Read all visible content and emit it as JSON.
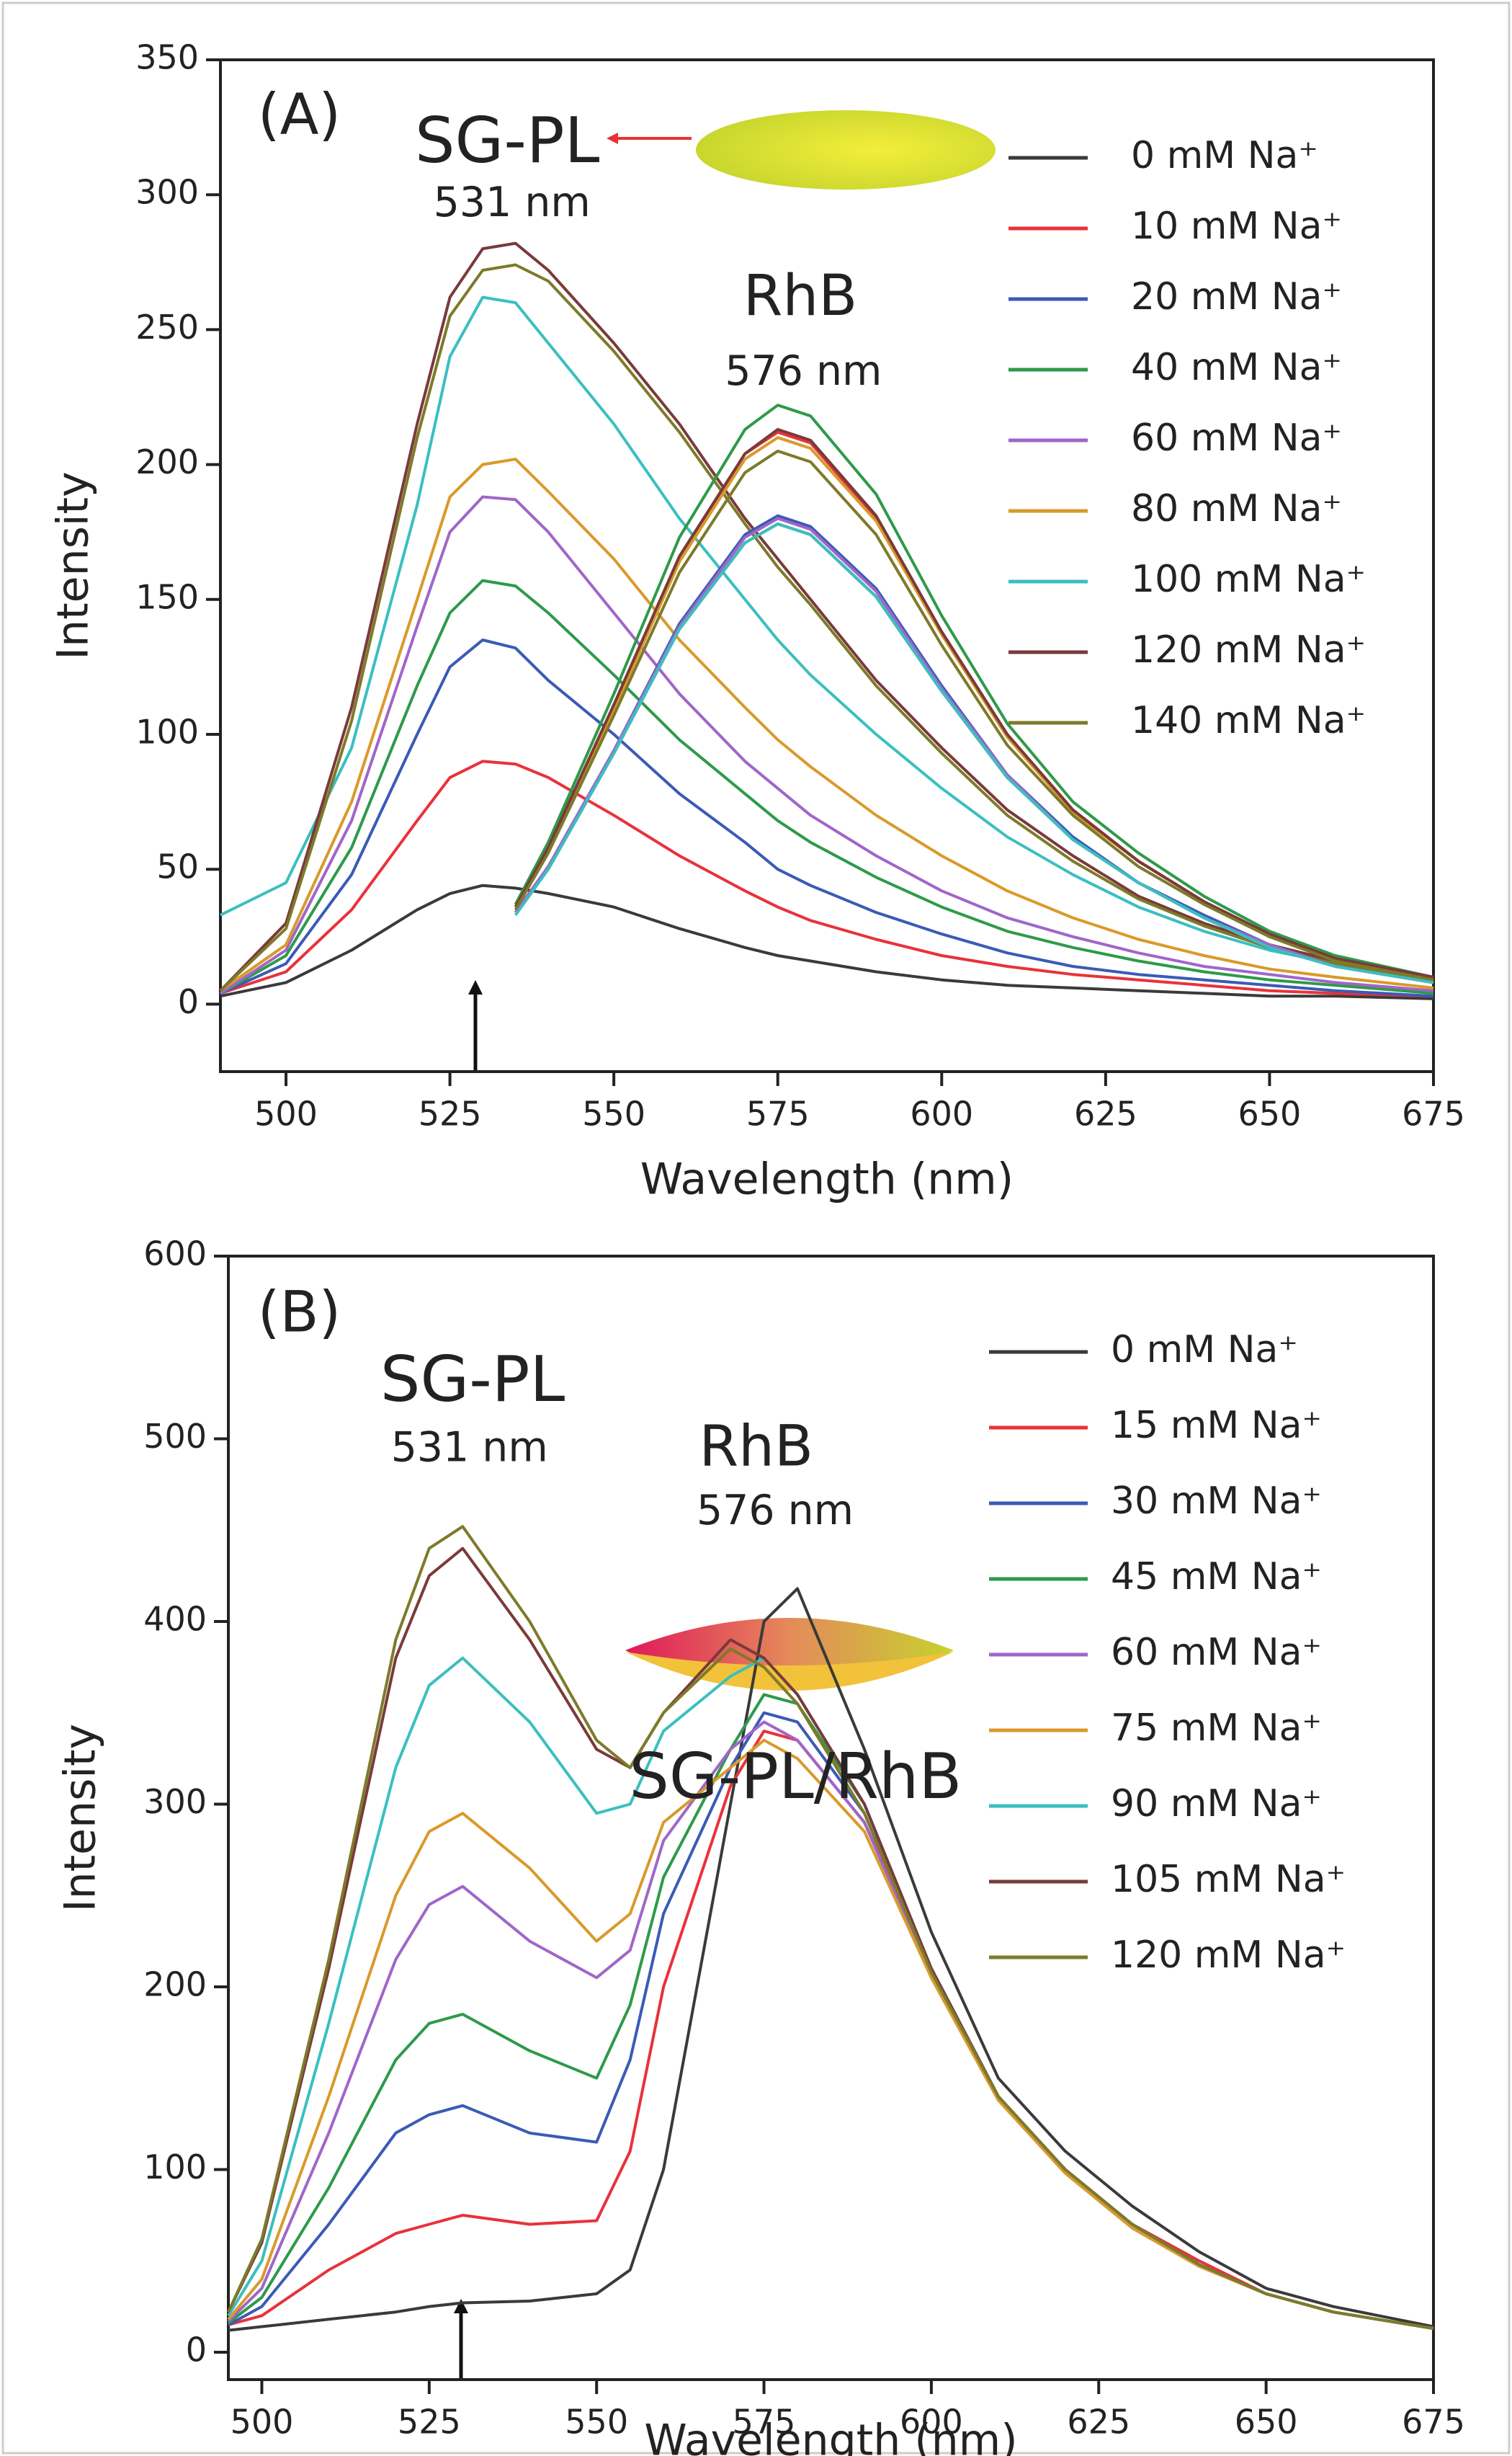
{
  "chart_data": [
    {
      "type": "line",
      "xlabel": "Wavelength (nm)",
      "ylabel": "Intensity",
      "xlim": [
        490,
        675
      ],
      "ylim": [
        -25,
        350
      ],
      "xticks": [
        500,
        525,
        550,
        575,
        600,
        625,
        650,
        675
      ],
      "yticks": [
        0,
        50,
        100,
        150,
        200,
        250,
        300,
        350
      ],
      "annotations": [
        "(A)",
        "SG-PL",
        "531 nm",
        "RhB",
        "576 nm"
      ],
      "x": [
        490,
        500,
        510,
        520,
        525,
        530,
        535,
        540,
        550,
        560,
        570,
        575,
        580,
        590,
        600,
        610,
        620,
        630,
        640,
        650,
        660,
        675
      ],
      "series": [
        {
          "name": "0 mM Na⁺",
          "color": "#3a3a3a",
          "values": [
            3,
            8,
            20,
            35,
            41,
            44,
            43,
            41,
            36,
            28,
            21,
            18,
            16,
            12,
            9,
            7,
            6,
            5,
            4,
            3,
            3,
            2
          ],
          "rhb_values": [
            null,
            null,
            null,
            null,
            null,
            null,
            34,
            50,
            93,
            139,
            171,
            178,
            174,
            151,
            116,
            84,
            61,
            45,
            32,
            21,
            14,
            8
          ]
        },
        {
          "name": "10 mM Na⁺",
          "color": "#e8323a",
          "values": [
            4,
            12,
            35,
            68,
            84,
            90,
            89,
            84,
            70,
            55,
            42,
            36,
            31,
            24,
            18,
            14,
            11,
            9,
            7,
            5,
            4,
            3
          ],
          "rhb_values": [
            null,
            null,
            null,
            null,
            null,
            null,
            36,
            57,
            110,
            165,
            204,
            212,
            208,
            180,
            138,
            100,
            72,
            53,
            38,
            25,
            17,
            9
          ]
        },
        {
          "name": "20 mM Na⁺",
          "color": "#3a5bb5",
          "values": [
            4,
            15,
            48,
            100,
            125,
            135,
            132,
            120,
            100,
            78,
            60,
            50,
            44,
            34,
            26,
            19,
            14,
            11,
            9,
            7,
            5,
            3
          ],
          "rhb_values": [
            null,
            null,
            null,
            null,
            null,
            null,
            34,
            51,
            94,
            141,
            174,
            181,
            177,
            154,
            118,
            85,
            62,
            45,
            33,
            22,
            14,
            8
          ]
        },
        {
          "name": "40 mM Na⁺",
          "color": "#2e9a4a",
          "values": [
            4,
            18,
            58,
            118,
            145,
            157,
            155,
            145,
            122,
            98,
            78,
            68,
            60,
            47,
            36,
            27,
            21,
            16,
            12,
            9,
            7,
            4
          ],
          "rhb_values": [
            null,
            null,
            null,
            null,
            null,
            null,
            37,
            60,
            115,
            173,
            213,
            222,
            218,
            189,
            144,
            104,
            75,
            56,
            40,
            27,
            18,
            10
          ]
        },
        {
          "name": "60 mM Na⁺",
          "color": "#a066c8",
          "values": [
            4,
            20,
            68,
            140,
            175,
            188,
            187,
            175,
            145,
            115,
            90,
            80,
            70,
            55,
            42,
            32,
            25,
            19,
            14,
            11,
            8,
            5
          ],
          "rhb_values": [
            null,
            null,
            null,
            null,
            null,
            null,
            34,
            51,
            94,
            140,
            173,
            180,
            176,
            153,
            117,
            85,
            61,
            45,
            32,
            22,
            14,
            8
          ]
        },
        {
          "name": "80 mM Na⁺",
          "color": "#d99a2a",
          "values": [
            5,
            22,
            75,
            150,
            188,
            200,
            202,
            190,
            165,
            135,
            110,
            98,
            88,
            70,
            55,
            42,
            32,
            24,
            18,
            13,
            10,
            6
          ],
          "rhb_values": [
            null,
            null,
            null,
            null,
            null,
            null,
            36,
            57,
            109,
            164,
            202,
            210,
            206,
            179,
            137,
            99,
            71,
            53,
            38,
            25,
            17,
            9
          ]
        },
        {
          "name": "100 mM Na⁺",
          "color": "#3bbfc0",
          "values": [
            33,
            45,
            95,
            185,
            240,
            262,
            260,
            245,
            215,
            180,
            150,
            135,
            122,
            100,
            80,
            62,
            48,
            36,
            27,
            20,
            15,
            9
          ],
          "rhb_values": [
            null,
            null,
            null,
            null,
            null,
            null,
            33,
            50,
            93,
            139,
            171,
            178,
            174,
            151,
            116,
            84,
            61,
            45,
            32,
            21,
            14,
            8
          ]
        },
        {
          "name": "120 mM Na⁺",
          "color": "#7a3a3a",
          "values": [
            5,
            30,
            110,
            215,
            262,
            280,
            282,
            272,
            245,
            215,
            180,
            165,
            150,
            120,
            95,
            72,
            55,
            40,
            30,
            22,
            16,
            8
          ],
          "rhb_values": [
            null,
            null,
            null,
            null,
            null,
            null,
            36,
            58,
            111,
            166,
            204,
            213,
            209,
            181,
            138,
            100,
            72,
            53,
            38,
            26,
            17,
            10
          ]
        },
        {
          "name": "140 mM Na⁺",
          "color": "#7d7a2a",
          "values": [
            5,
            28,
            105,
            210,
            255,
            272,
            274,
            268,
            242,
            212,
            178,
            162,
            148,
            118,
            93,
            70,
            53,
            39,
            29,
            21,
            15,
            8
          ],
          "rhb_values": [
            null,
            null,
            null,
            null,
            null,
            null,
            35,
            56,
            107,
            160,
            197,
            205,
            201,
            174,
            133,
            96,
            70,
            51,
            37,
            25,
            16,
            9
          ]
        }
      ]
    },
    {
      "type": "line",
      "xlabel": "Wavelength (nm)",
      "ylabel": "Intensity",
      "xlim": [
        495,
        675
      ],
      "ylim": [
        -15,
        600
      ],
      "xticks": [
        500,
        525,
        550,
        575,
        600,
        625,
        650,
        675
      ],
      "yticks": [
        0,
        100,
        200,
        300,
        400,
        500,
        600
      ],
      "annotations": [
        "(B)",
        "SG-PL",
        "531 nm",
        "RhB",
        "576 nm",
        "SG-PL/RhB"
      ],
      "x": [
        495,
        500,
        510,
        520,
        525,
        530,
        540,
        550,
        555,
        560,
        570,
        575,
        580,
        590,
        600,
        610,
        620,
        630,
        640,
        650,
        660,
        675
      ],
      "series": [
        {
          "name": "0 mM Na⁺",
          "color": "#3a3a3a",
          "values": [
            12,
            14,
            18,
            22,
            25,
            27,
            28,
            32,
            45,
            100,
            300,
            400,
            418,
            330,
            230,
            150,
            110,
            80,
            55,
            35,
            25,
            14
          ]
        },
        {
          "name": "15 mM Na⁺",
          "color": "#e8323a",
          "values": [
            15,
            20,
            45,
            65,
            70,
            75,
            70,
            72,
            110,
            200,
            310,
            340,
            335,
            290,
            210,
            140,
            100,
            70,
            50,
            32,
            22,
            13
          ]
        },
        {
          "name": "30 mM Na⁺",
          "color": "#3a5bb5",
          "values": [
            15,
            25,
            70,
            120,
            130,
            135,
            120,
            115,
            160,
            240,
            320,
            350,
            345,
            295,
            210,
            140,
            100,
            70,
            48,
            32,
            22,
            13
          ]
        },
        {
          "name": "45 mM Na⁺",
          "color": "#2e9a4a",
          "values": [
            16,
            30,
            90,
            160,
            180,
            185,
            165,
            150,
            190,
            260,
            330,
            360,
            355,
            300,
            210,
            140,
            100,
            70,
            48,
            32,
            22,
            13
          ]
        },
        {
          "name": "60 mM Na⁺",
          "color": "#a066c8",
          "values": [
            17,
            35,
            120,
            215,
            245,
            255,
            225,
            205,
            220,
            280,
            330,
            345,
            335,
            290,
            205,
            138,
            98,
            68,
            47,
            32,
            22,
            13
          ]
        },
        {
          "name": "75 mM Na⁺",
          "color": "#d99a2a",
          "values": [
            18,
            40,
            140,
            250,
            285,
            295,
            265,
            225,
            240,
            290,
            320,
            335,
            325,
            285,
            205,
            138,
            98,
            68,
            47,
            32,
            22,
            13
          ]
        },
        {
          "name": "90 mM Na⁺",
          "color": "#3bbfc0",
          "values": [
            20,
            50,
            180,
            320,
            365,
            380,
            345,
            295,
            300,
            340,
            370,
            380,
            360,
            300,
            210,
            140,
            100,
            70,
            48,
            32,
            22,
            13
          ]
        },
        {
          "name": "105 mM Na⁺",
          "color": "#7a3a3a",
          "values": [
            22,
            60,
            210,
            380,
            425,
            440,
            390,
            330,
            320,
            350,
            390,
            380,
            360,
            300,
            210,
            140,
            100,
            70,
            48,
            32,
            22,
            13
          ]
        },
        {
          "name": "120 mM Na⁺",
          "color": "#7d7a2a",
          "values": [
            22,
            62,
            215,
            390,
            440,
            452,
            400,
            335,
            320,
            350,
            385,
            375,
            355,
            295,
            208,
            140,
            100,
            70,
            48,
            32,
            22,
            13
          ]
        }
      ]
    }
  ]
}
